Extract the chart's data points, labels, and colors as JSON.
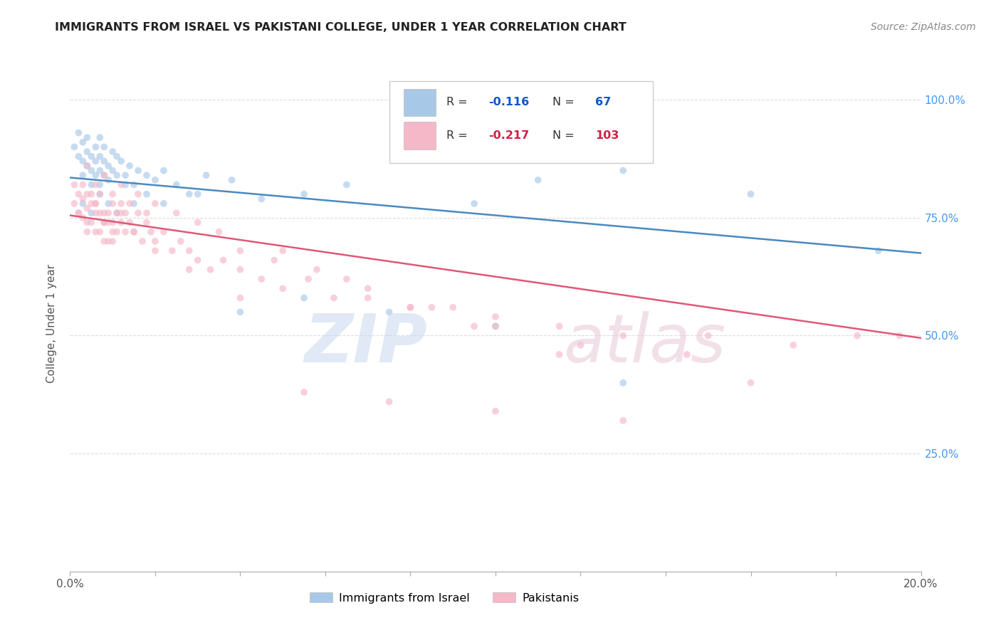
{
  "title": "IMMIGRANTS FROM ISRAEL VS PAKISTANI COLLEGE, UNDER 1 YEAR CORRELATION CHART",
  "source": "Source: ZipAtlas.com",
  "ylabel": "College, Under 1 year",
  "ytick_labels": [
    "",
    "25.0%",
    "50.0%",
    "75.0%",
    "100.0%"
  ],
  "ytick_positions": [
    0.0,
    0.25,
    0.5,
    0.75,
    1.0
  ],
  "xlim": [
    0.0,
    0.2
  ],
  "ylim": [
    0.0,
    1.05
  ],
  "israel_line_x": [
    0.0,
    0.2
  ],
  "israel_line_y": [
    0.835,
    0.675
  ],
  "pakistan_line_x": [
    0.0,
    0.2
  ],
  "pakistan_line_y": [
    0.755,
    0.495
  ],
  "israel_color": "#a8c8e8",
  "pakistan_color": "#f5b8c8",
  "israel_line_color": "#4a8abf",
  "pakistan_line_color": "#e05878",
  "grid_color": "#d8d8d8",
  "background_color": "#ffffff",
  "title_color": "#222222",
  "source_color": "#888888",
  "axis_label_color": "#555555",
  "right_tick_color": "#4499ee",
  "marker_size": 7,
  "marker_alpha": 0.65,
  "line_width": 1.8,
  "israel_x": [
    0.001,
    0.002,
    0.002,
    0.003,
    0.003,
    0.003,
    0.004,
    0.004,
    0.004,
    0.005,
    0.005,
    0.005,
    0.006,
    0.006,
    0.006,
    0.007,
    0.007,
    0.007,
    0.007,
    0.008,
    0.008,
    0.008,
    0.009,
    0.009,
    0.01,
    0.01,
    0.011,
    0.011,
    0.012,
    0.013,
    0.014,
    0.015,
    0.016,
    0.018,
    0.02,
    0.022,
    0.025,
    0.028,
    0.032,
    0.038,
    0.045,
    0.055,
    0.065,
    0.08,
    0.095,
    0.11,
    0.13,
    0.003,
    0.005,
    0.007,
    0.009,
    0.011,
    0.013,
    0.015,
    0.018,
    0.022,
    0.03,
    0.04,
    0.055,
    0.075,
    0.1,
    0.13,
    0.16,
    0.19
  ],
  "israel_y": [
    0.9,
    0.88,
    0.93,
    0.87,
    0.84,
    0.91,
    0.89,
    0.86,
    0.92,
    0.85,
    0.88,
    0.82,
    0.9,
    0.87,
    0.84,
    0.88,
    0.85,
    0.82,
    0.92,
    0.87,
    0.84,
    0.9,
    0.86,
    0.83,
    0.89,
    0.85,
    0.88,
    0.84,
    0.87,
    0.84,
    0.86,
    0.82,
    0.85,
    0.84,
    0.83,
    0.85,
    0.82,
    0.8,
    0.84,
    0.83,
    0.79,
    0.8,
    0.82,
    0.88,
    0.78,
    0.83,
    0.85,
    0.78,
    0.76,
    0.8,
    0.78,
    0.76,
    0.82,
    0.78,
    0.8,
    0.78,
    0.8,
    0.55,
    0.58,
    0.55,
    0.52,
    0.4,
    0.8,
    0.68
  ],
  "pakistan_x": [
    0.001,
    0.001,
    0.002,
    0.002,
    0.003,
    0.003,
    0.003,
    0.004,
    0.004,
    0.004,
    0.005,
    0.005,
    0.005,
    0.006,
    0.006,
    0.006,
    0.007,
    0.007,
    0.007,
    0.008,
    0.008,
    0.008,
    0.009,
    0.009,
    0.009,
    0.01,
    0.01,
    0.01,
    0.011,
    0.011,
    0.012,
    0.012,
    0.013,
    0.013,
    0.014,
    0.015,
    0.016,
    0.017,
    0.018,
    0.019,
    0.02,
    0.022,
    0.024,
    0.026,
    0.028,
    0.03,
    0.033,
    0.036,
    0.04,
    0.045,
    0.05,
    0.056,
    0.062,
    0.07,
    0.08,
    0.09,
    0.1,
    0.115,
    0.13,
    0.15,
    0.17,
    0.185,
    0.195,
    0.004,
    0.006,
    0.008,
    0.01,
    0.012,
    0.014,
    0.016,
    0.018,
    0.02,
    0.025,
    0.03,
    0.035,
    0.04,
    0.048,
    0.058,
    0.07,
    0.085,
    0.1,
    0.12,
    0.145,
    0.002,
    0.004,
    0.006,
    0.008,
    0.01,
    0.012,
    0.015,
    0.02,
    0.028,
    0.04,
    0.055,
    0.075,
    0.1,
    0.13,
    0.16,
    0.05,
    0.065,
    0.08,
    0.095,
    0.115
  ],
  "pakistan_y": [
    0.82,
    0.78,
    0.8,
    0.76,
    0.79,
    0.75,
    0.82,
    0.77,
    0.8,
    0.74,
    0.78,
    0.74,
    0.8,
    0.76,
    0.72,
    0.78,
    0.76,
    0.72,
    0.8,
    0.74,
    0.7,
    0.76,
    0.74,
    0.7,
    0.76,
    0.72,
    0.78,
    0.74,
    0.76,
    0.72,
    0.74,
    0.78,
    0.72,
    0.76,
    0.74,
    0.72,
    0.76,
    0.7,
    0.74,
    0.72,
    0.7,
    0.72,
    0.68,
    0.7,
    0.68,
    0.66,
    0.64,
    0.66,
    0.64,
    0.62,
    0.6,
    0.62,
    0.58,
    0.6,
    0.56,
    0.56,
    0.54,
    0.52,
    0.5,
    0.5,
    0.48,
    0.5,
    0.5,
    0.86,
    0.82,
    0.84,
    0.8,
    0.82,
    0.78,
    0.8,
    0.76,
    0.78,
    0.76,
    0.74,
    0.72,
    0.68,
    0.66,
    0.64,
    0.58,
    0.56,
    0.52,
    0.48,
    0.46,
    0.76,
    0.72,
    0.78,
    0.74,
    0.7,
    0.76,
    0.72,
    0.68,
    0.64,
    0.58,
    0.38,
    0.36,
    0.34,
    0.32,
    0.4,
    0.68,
    0.62,
    0.56,
    0.52,
    0.46
  ]
}
